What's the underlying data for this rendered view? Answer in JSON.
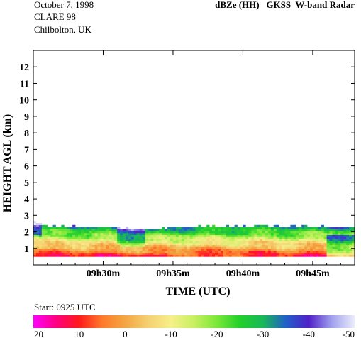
{
  "header": {
    "date": "October  7, 1998",
    "campaign": "CLARE 98",
    "location": "Chilbolton, UK",
    "title": "dBZe (HH)   GKSS  W-band Radar"
  },
  "start_label": "Start: 0925 UTC",
  "colorbar": {
    "ticks": [
      "20",
      "10",
      "0",
      "-10",
      "-20",
      "-30",
      "-40",
      "-50"
    ],
    "stops": [
      {
        "v": 20,
        "color": "#ff00ff"
      },
      {
        "v": 15,
        "color": "#ff0080"
      },
      {
        "v": 10,
        "color": "#ff1a1a"
      },
      {
        "v": 5,
        "color": "#ff7a2a"
      },
      {
        "v": 0,
        "color": "#f3a642"
      },
      {
        "v": -5,
        "color": "#f5d070"
      },
      {
        "v": -10,
        "color": "#f5f08a"
      },
      {
        "v": -15,
        "color": "#c8f060"
      },
      {
        "v": -20,
        "color": "#7ae838"
      },
      {
        "v": -25,
        "color": "#22d02a"
      },
      {
        "v": -30,
        "color": "#18b858"
      },
      {
        "v": -35,
        "color": "#2060c8"
      },
      {
        "v": -40,
        "color": "#5020c8"
      },
      {
        "v": -45,
        "color": "#a0a0ee"
      },
      {
        "v": -50,
        "color": "#ececfc"
      }
    ]
  },
  "chart_data": {
    "type": "heatmap",
    "title": "dBZe (HH)   GKSS  W-band Radar",
    "xlabel": "TIME (UTC)",
    "ylabel": "HEIGHT AGL (km)",
    "xlim": [
      "09:25",
      "09:48"
    ],
    "ylim": [
      0,
      13
    ],
    "x_tick_labels": [
      "09h30m",
      "09h35m",
      "09h40m",
      "09h45m"
    ],
    "y_tick_labels": [
      "1",
      "2",
      "3",
      "4",
      "5",
      "6",
      "7",
      "8",
      "9",
      "10",
      "11",
      "12"
    ],
    "value_range_dBZe": [
      20,
      -50
    ],
    "cloud_top_km": [
      {
        "time": "09:25",
        "height": 2.6
      },
      {
        "time": "09:26",
        "height": 2.3
      },
      {
        "time": "09:30",
        "height": 2.25
      },
      {
        "time": "09:33",
        "height": 2.1
      },
      {
        "time": "09:35",
        "height": 2.25
      },
      {
        "time": "09:41",
        "height": 2.3
      },
      {
        "time": "09:48",
        "height": 2.25
      }
    ],
    "cloud_base_km": 0.5
  }
}
